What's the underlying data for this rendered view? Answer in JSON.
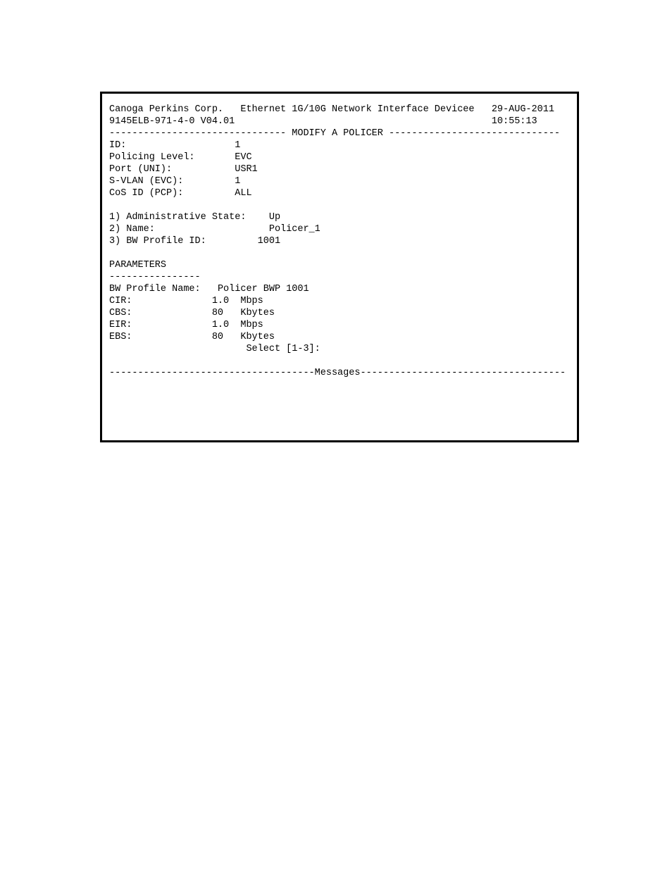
{
  "header": {
    "company": "Canoga Perkins Corp.",
    "device": "Ethernet 1G/10G Network Interface Devicee",
    "date": "29-AUG-2011",
    "model": "9145ELB-971-4-0 V04.01",
    "time": "10:55:13"
  },
  "section_title": "MODIFY A POLICER",
  "info": {
    "id_label": "ID:",
    "id_value": "1",
    "policing_level_label": "Policing Level:",
    "policing_level_value": "EVC",
    "port_label": "Port (UNI):",
    "port_value": "USR1",
    "svlan_label": "S-VLAN (EVC):",
    "svlan_value": "1",
    "cos_label": "CoS ID (PCP):",
    "cos_value": "ALL"
  },
  "options": {
    "opt1_label": "1) Administrative State:",
    "opt1_value": "Up",
    "opt2_label": "2) Name:",
    "opt2_value": "Policer_1",
    "opt3_label": "3) BW Profile ID:",
    "opt3_value": "1001"
  },
  "parameters": {
    "heading": "PARAMETERS",
    "divider": "----------------",
    "bw_profile_name_label": "BW Profile Name:",
    "bw_profile_name_value": "Policer BWP 1001",
    "cir_label": "CIR:",
    "cir_value": "1.0",
    "cir_unit": "Mbps",
    "cbs_label": "CBS:",
    "cbs_value": "80",
    "cbs_unit": "Kbytes",
    "eir_label": "EIR:",
    "eir_value": "1.0",
    "eir_unit": "Mbps",
    "ebs_label": "EBS:",
    "ebs_value": "80",
    "ebs_unit": "Kbytes"
  },
  "prompt": "Select [1-3]:",
  "messages_label": "Messages"
}
